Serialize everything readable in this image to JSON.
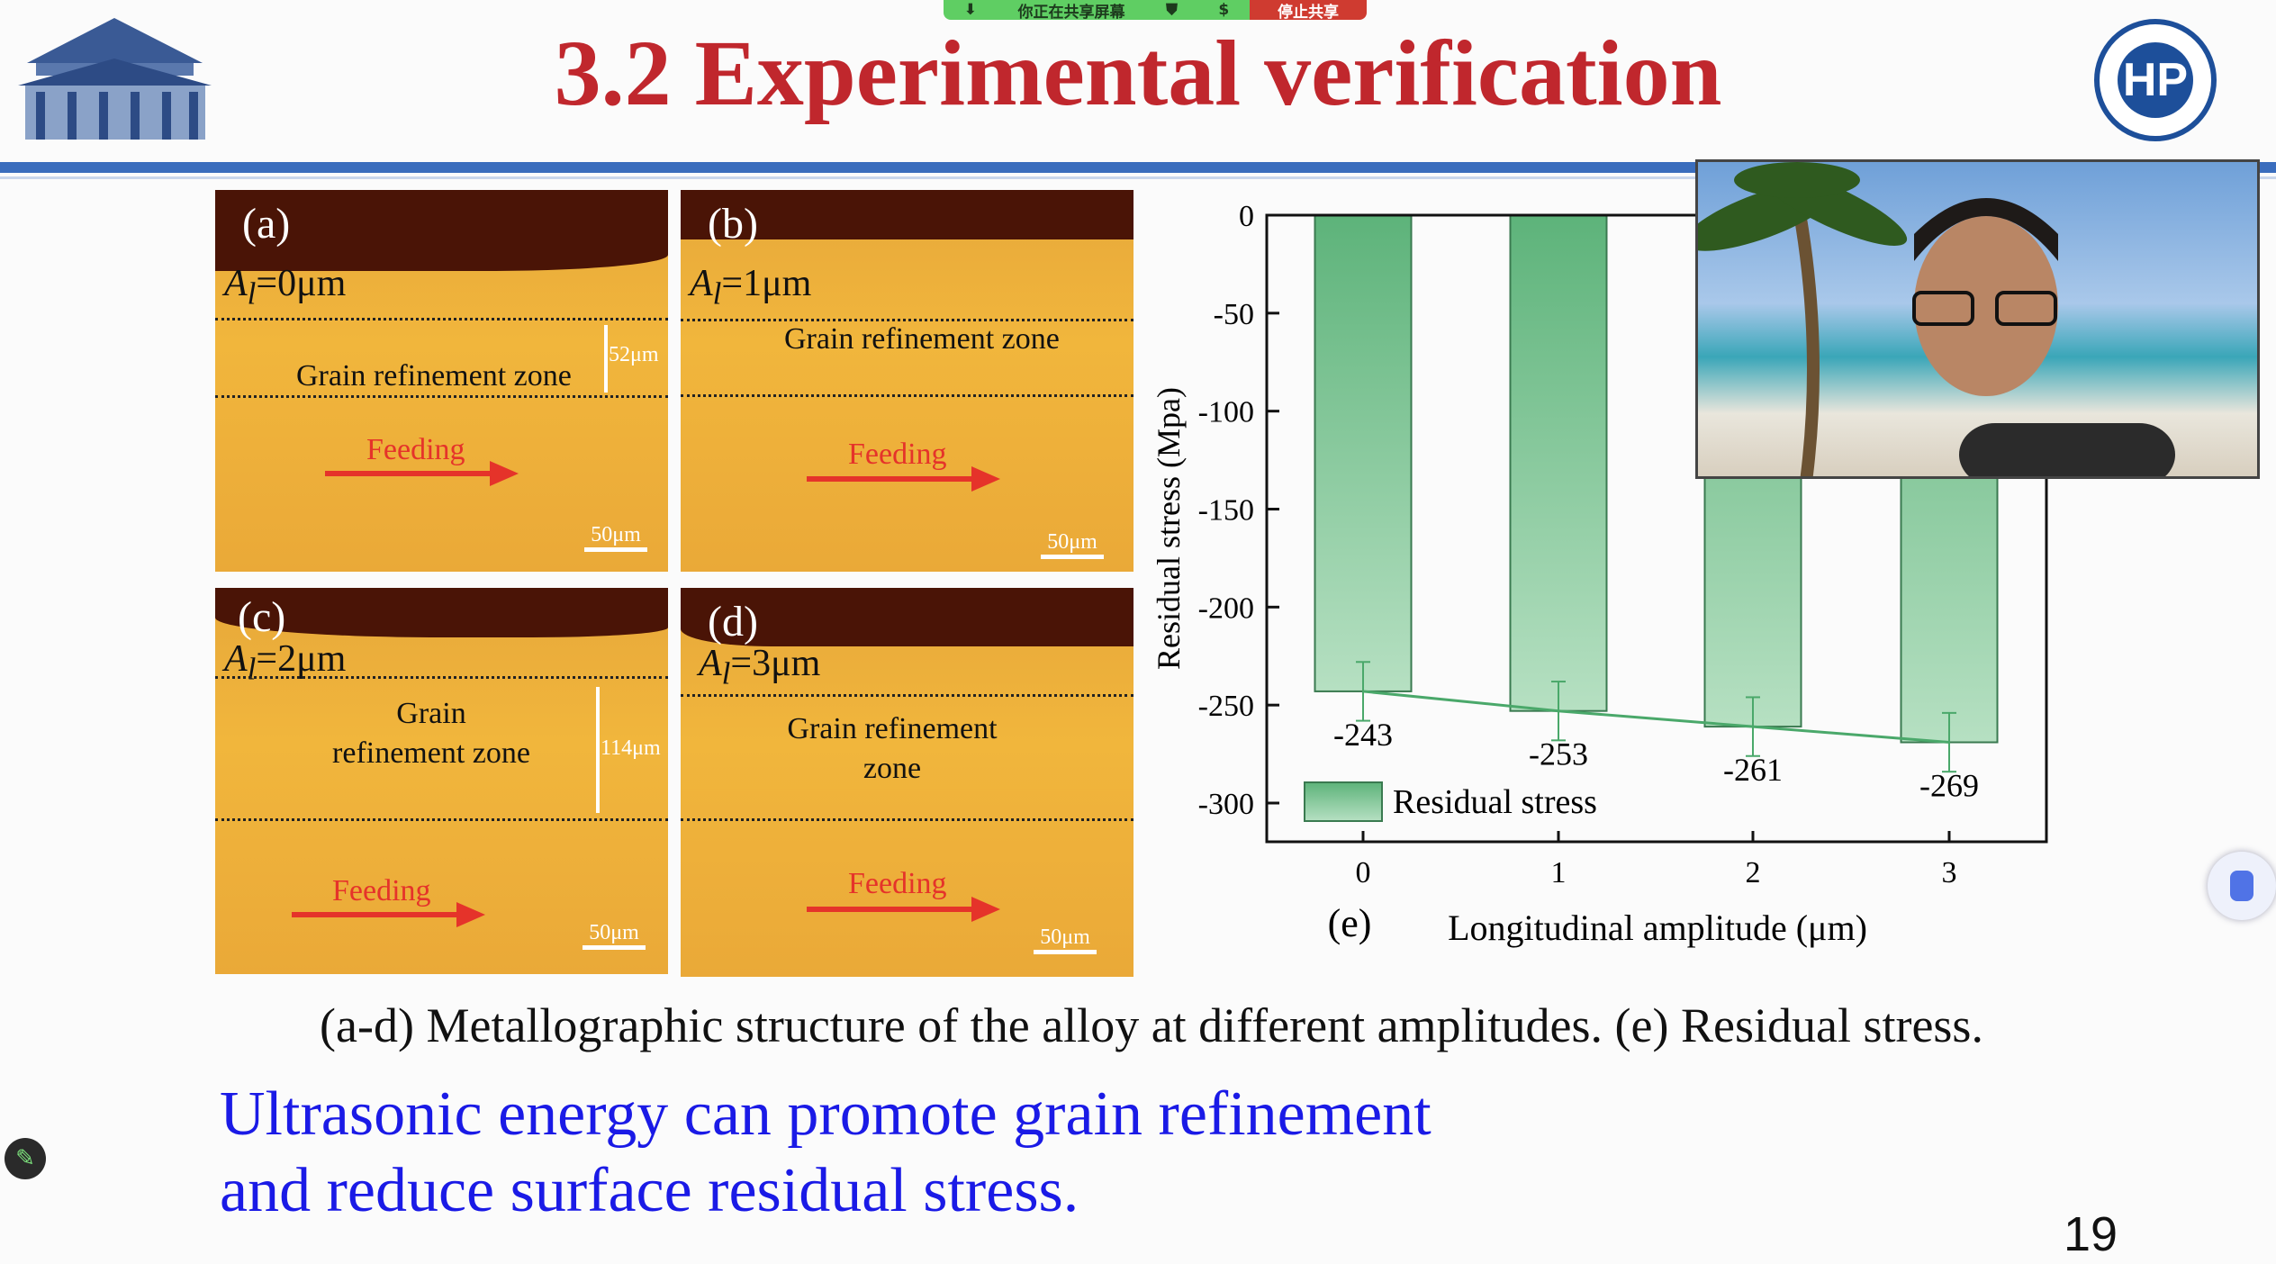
{
  "share_bar": {
    "status": "你正在共享屏幕",
    "stop": "停止共享"
  },
  "title": "3.2 Experimental verification",
  "logo_right_text": "HP",
  "panels": [
    {
      "label": "(a)",
      "amp_sym": "A",
      "amp_sub": "l",
      "amp_val": "=0μm",
      "zone": "Grain refinement zone",
      "dim": "52μm",
      "feeding": "Feeding",
      "scale": "50μm"
    },
    {
      "label": "(b)",
      "amp_sym": "A",
      "amp_sub": "l",
      "amp_val": "=1μm",
      "zone": "Grain refinement zone",
      "feeding": "Feeding",
      "scale": "50μm"
    },
    {
      "label": "(c)",
      "amp_sym": "A",
      "amp_sub": "l",
      "amp_val": "=2μm",
      "zone": "Grain refinement zone",
      "dim": "114μm",
      "feeding": "Feeding",
      "scale": "50μm"
    },
    {
      "label": "(d)",
      "amp_sym": "A",
      "amp_sub": "l",
      "amp_val": "=3μm",
      "zone": "Grain refinement zone",
      "feeding": "Feeding",
      "scale": "50μm"
    }
  ],
  "chart_data": {
    "type": "bar",
    "panel_label": "(e)",
    "categories": [
      "0",
      "1",
      "2",
      "3"
    ],
    "values": [
      -243,
      -253,
      -261,
      -269
    ],
    "value_labels": [
      "-243",
      "-253",
      "-261",
      "-269"
    ],
    "error": 15,
    "xlabel": "Longitudinal amplitude (μm)",
    "ylabel": "Residual stress (Mpa)",
    "ylim": [
      -320,
      0
    ],
    "yticks": [
      "0",
      "-50",
      "-100",
      "-150",
      "-200",
      "-250",
      "-300"
    ],
    "legend": "Residual stress",
    "legend_position": "bottom-left",
    "bar_color": "#5db37a"
  },
  "caption": "(a-d) Metallographic structure of the alloy at different amplitudes. (e) Residual stress.",
  "conclusion": [
    "Ultrasonic energy can promote grain refinement",
    "and reduce surface residual stress."
  ],
  "page_number": "19"
}
